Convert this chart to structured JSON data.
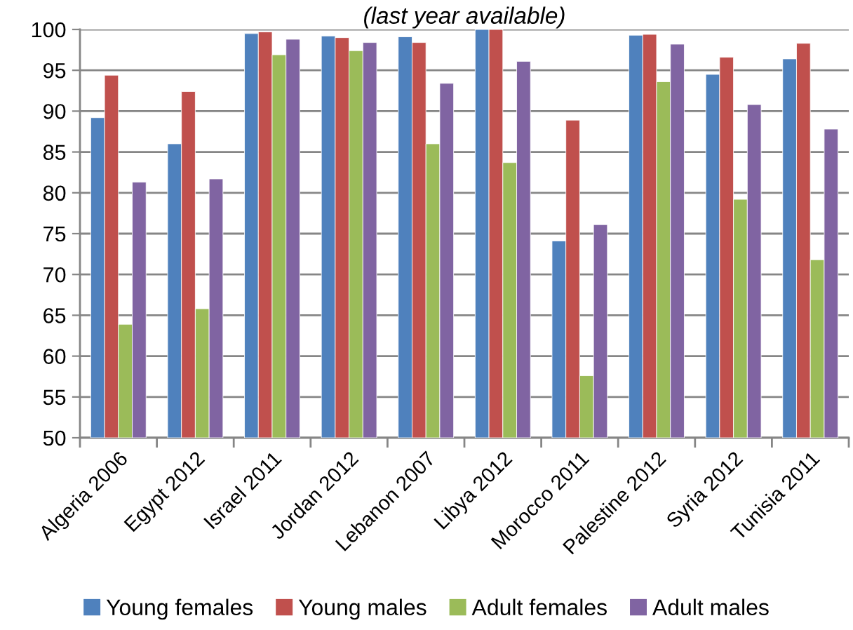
{
  "chart_data": {
    "type": "bar",
    "title": "(last year available)",
    "categories": [
      "Algeria 2006",
      "Egypt 2012",
      "Israel 2011",
      "Jordan 2012",
      "Lebanon 2007",
      "Libya 2012",
      "Morocco 2011",
      "Palestine 2012",
      "Syria 2012",
      "Tunisia 2011"
    ],
    "series": [
      {
        "name": "Young females",
        "color": "#4f81bd",
        "values": [
          89.2,
          86.0,
          99.5,
          99.2,
          99.1,
          100,
          74.1,
          99.3,
          94.5,
          96.4
        ]
      },
      {
        "name": "Young males",
        "color": "#c0504d",
        "values": [
          94.4,
          92.4,
          99.7,
          99.0,
          98.4,
          100,
          88.9,
          99.4,
          96.6,
          98.3
        ]
      },
      {
        "name": "Adult females",
        "color": "#9bbb59",
        "values": [
          63.9,
          65.8,
          96.9,
          97.4,
          86.0,
          83.7,
          57.6,
          93.6,
          79.2,
          71.8
        ]
      },
      {
        "name": "Adult males",
        "color": "#8064a2",
        "values": [
          81.3,
          81.7,
          98.8,
          98.4,
          93.4,
          96.1,
          76.1,
          98.2,
          90.8,
          87.8
        ]
      }
    ],
    "ylim": [
      50,
      100
    ],
    "yticks": [
      50,
      55,
      60,
      65,
      70,
      75,
      80,
      85,
      90,
      95,
      100
    ],
    "grid": "y",
    "legend": "bottom"
  }
}
